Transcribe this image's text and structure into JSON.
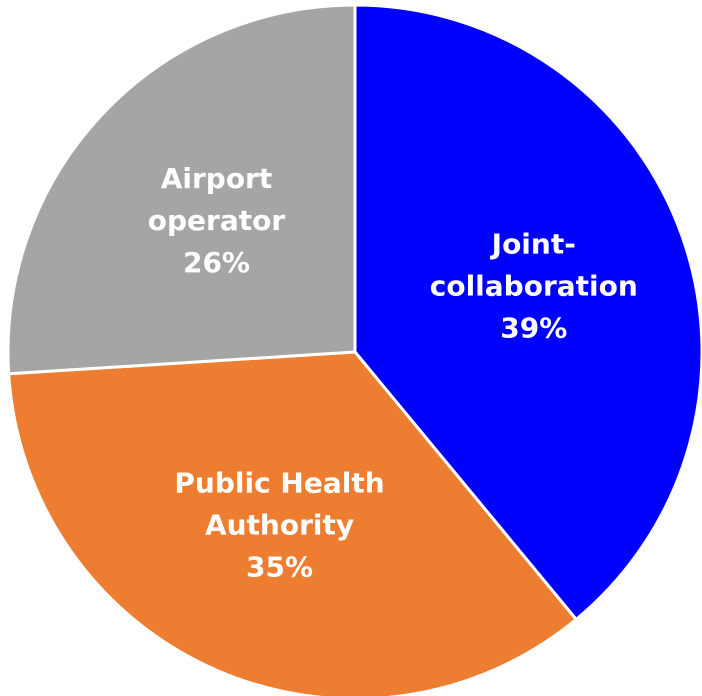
{
  "chart_data": {
    "type": "pie",
    "categories": [
      "Joint-collaboration",
      "Public Health Authority",
      "Airport operator"
    ],
    "values": [
      39,
      35,
      26
    ],
    "value_labels": [
      "39%",
      "35%",
      "26%"
    ],
    "colors": [
      "#0000ff",
      "#ed7d31",
      "#a5a5a5"
    ]
  }
}
